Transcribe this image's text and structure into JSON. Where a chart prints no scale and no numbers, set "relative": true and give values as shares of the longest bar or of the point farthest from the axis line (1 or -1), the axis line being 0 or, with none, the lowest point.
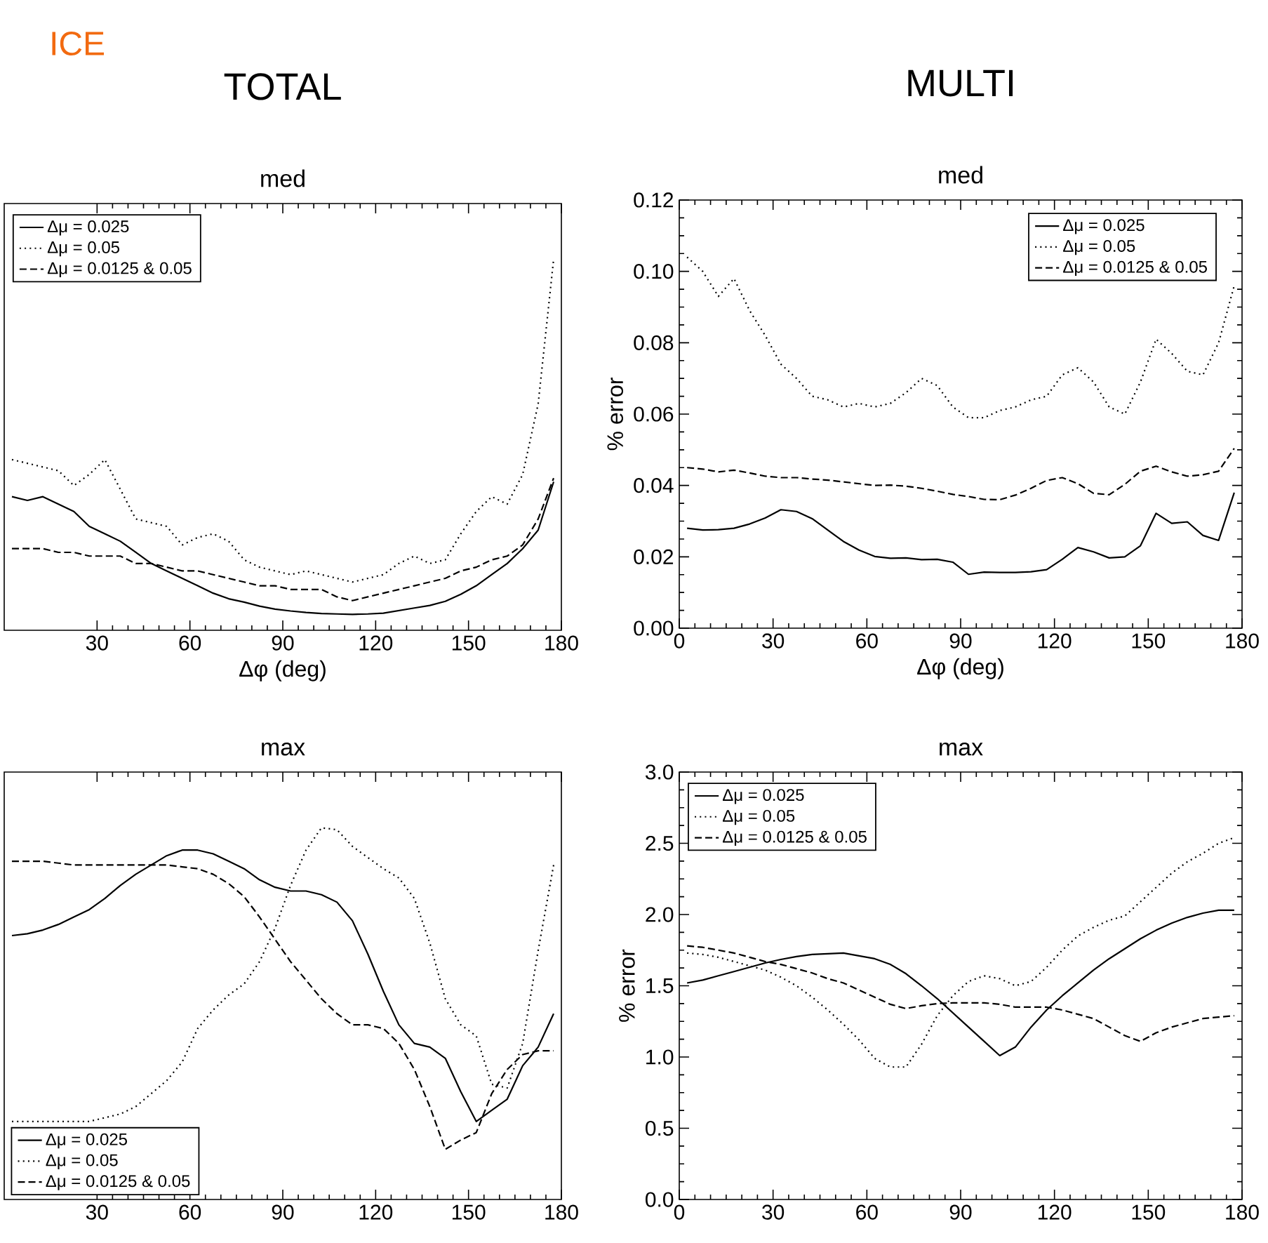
{
  "chart_data": [
    {
      "type": "line",
      "title": "TOTAL",
      "subtitle": "med",
      "xlabel": "Δφ (deg)",
      "annotations": [
        "ICE"
      ],
      "relative": true,
      "xlim": [
        0,
        180
      ],
      "xticks": [
        30,
        60,
        90,
        120,
        150,
        180
      ],
      "legend": "top left",
      "x": [
        2.5,
        7.5,
        12.5,
        17.5,
        22.5,
        27.5,
        32.5,
        37.5,
        42.5,
        47.5,
        52.5,
        57.5,
        62.5,
        67.5,
        72.5,
        77.5,
        82.5,
        87.5,
        92.5,
        97.5,
        102.5,
        107.5,
        112.5,
        117.5,
        122.5,
        127.5,
        132.5,
        137.5,
        142.5,
        147.5,
        152.5,
        157.5,
        162.5,
        167.5,
        172.5,
        177.5
      ],
      "series": [
        {
          "name": "Δμ = 0.025",
          "color": "#000000",
          "line_style": "solid",
          "values": [
            0.36,
            0.35,
            0.36,
            0.34,
            0.32,
            0.28,
            0.26,
            0.24,
            0.21,
            0.18,
            0.16,
            0.14,
            0.12,
            0.1,
            0.085,
            0.076,
            0.065,
            0.057,
            0.052,
            0.048,
            0.045,
            0.044,
            0.043,
            0.044,
            0.046,
            0.053,
            0.06,
            0.067,
            0.078,
            0.097,
            0.12,
            0.15,
            0.18,
            0.22,
            0.27,
            0.4
          ]
        },
        {
          "name": "Δμ =  0.05",
          "color": "#000000",
          "line_style": "dotted",
          "values": [
            0.46,
            0.45,
            0.44,
            0.43,
            0.39,
            0.42,
            0.46,
            0.38,
            0.3,
            0.29,
            0.28,
            0.23,
            0.25,
            0.26,
            0.24,
            0.19,
            0.17,
            0.16,
            0.15,
            0.16,
            0.15,
            0.14,
            0.13,
            0.14,
            0.15,
            0.18,
            0.2,
            0.18,
            0.19,
            0.26,
            0.32,
            0.36,
            0.34,
            0.42,
            0.61,
            1.0
          ]
        },
        {
          "name": "Δμ = 0.0125 & 0.05",
          "color": "#000000",
          "line_style": "dashed",
          "values": [
            0.22,
            0.22,
            0.22,
            0.21,
            0.21,
            0.2,
            0.2,
            0.2,
            0.18,
            0.18,
            0.17,
            0.16,
            0.16,
            0.15,
            0.14,
            0.13,
            0.12,
            0.12,
            0.11,
            0.11,
            0.11,
            0.09,
            0.08,
            0.09,
            0.1,
            0.11,
            0.12,
            0.13,
            0.14,
            0.16,
            0.17,
            0.19,
            0.2,
            0.23,
            0.3,
            0.41
          ]
        }
      ]
    },
    {
      "type": "line",
      "title": "MULTI",
      "subtitle": "med",
      "xlabel": "Δφ (deg)",
      "ylabel": "% error",
      "xlim": [
        0,
        180
      ],
      "xticks": [
        0,
        30,
        60,
        90,
        120,
        150,
        180
      ],
      "ylim": [
        0,
        0.12
      ],
      "yticks": [
        {
          "value": 0,
          "label": "0.00"
        },
        {
          "value": 0.02,
          "label": "0.02"
        },
        {
          "value": 0.04,
          "label": "0.04"
        },
        {
          "value": 0.06,
          "label": "0.06"
        },
        {
          "value": 0.08,
          "label": "0.08"
        },
        {
          "value": 0.1,
          "label": "0.10"
        },
        {
          "value": 0.12,
          "label": "0.12"
        }
      ],
      "legend": "top right",
      "x": [
        2.5,
        7.5,
        12.5,
        17.5,
        22.5,
        27.5,
        32.5,
        37.5,
        42.5,
        47.5,
        52.5,
        57.5,
        62.5,
        67.5,
        72.5,
        77.5,
        82.5,
        87.5,
        92.5,
        97.5,
        102.5,
        107.5,
        112.5,
        117.5,
        122.5,
        127.5,
        132.5,
        137.5,
        142.5,
        147.5,
        152.5,
        157.5,
        162.5,
        167.5,
        172.5,
        177.5
      ],
      "series": [
        {
          "name": "Δμ = 0.025",
          "color": "#000000",
          "line_style": "solid",
          "values": [
            0.028,
            0.0275,
            0.0276,
            0.028,
            0.0292,
            0.0309,
            0.0332,
            0.0327,
            0.0307,
            0.0275,
            0.0243,
            0.0219,
            0.0201,
            0.0196,
            0.0197,
            0.0192,
            0.0193,
            0.0185,
            0.0151,
            0.0157,
            0.0156,
            0.0156,
            0.0158,
            0.0164,
            0.0193,
            0.0226,
            0.0214,
            0.0197,
            0.02,
            0.0231,
            0.0322,
            0.0294,
            0.0298,
            0.026,
            0.0246,
            0.038
          ]
        },
        {
          "name": "Δμ =  0.05",
          "color": "#000000",
          "line_style": "dotted",
          "values": [
            0.104,
            0.1,
            0.093,
            0.098,
            0.089,
            0.082,
            0.074,
            0.07,
            0.065,
            0.064,
            0.062,
            0.063,
            0.062,
            0.063,
            0.066,
            0.07,
            0.068,
            0.062,
            0.059,
            0.059,
            0.061,
            0.062,
            0.064,
            0.065,
            0.071,
            0.073,
            0.069,
            0.062,
            0.06,
            0.069,
            0.081,
            0.077,
            0.072,
            0.071,
            0.08,
            0.096
          ]
        },
        {
          "name": "Δμ = 0.0125 & 0.05",
          "color": "#000000",
          "line_style": "dashed",
          "values": [
            0.045,
            0.0446,
            0.0438,
            0.0443,
            0.0435,
            0.0426,
            0.0422,
            0.0422,
            0.0418,
            0.0415,
            0.041,
            0.0405,
            0.04,
            0.0401,
            0.0398,
            0.0392,
            0.0384,
            0.0375,
            0.0369,
            0.0361,
            0.036,
            0.0373,
            0.0392,
            0.0414,
            0.0422,
            0.0405,
            0.0378,
            0.0374,
            0.0403,
            0.044,
            0.0454,
            0.0438,
            0.0426,
            0.043,
            0.044,
            0.0504
          ]
        }
      ]
    },
    {
      "type": "line",
      "title": "max",
      "relative": true,
      "xlim": [
        0,
        180
      ],
      "xticks": [
        30,
        60,
        90,
        120,
        150,
        180
      ],
      "legend": "bottom left",
      "x": [
        2.5,
        7.5,
        12.5,
        17.5,
        22.5,
        27.5,
        32.5,
        37.5,
        42.5,
        47.5,
        52.5,
        57.5,
        62.5,
        67.5,
        72.5,
        77.5,
        82.5,
        87.5,
        92.5,
        97.5,
        102.5,
        107.5,
        112.5,
        117.5,
        122.5,
        127.5,
        132.5,
        137.5,
        142.5,
        147.5,
        152.5,
        157.5,
        162.5,
        167.5,
        172.5,
        177.5
      ],
      "series": [
        {
          "name": "Δμ = 0.025",
          "color": "#000000",
          "line_style": "solid",
          "values": [
            0.71,
            0.715,
            0.725,
            0.74,
            0.76,
            0.78,
            0.81,
            0.845,
            0.875,
            0.9,
            0.925,
            0.94,
            0.94,
            0.93,
            0.91,
            0.89,
            0.86,
            0.84,
            0.83,
            0.83,
            0.82,
            0.8,
            0.75,
            0.66,
            0.56,
            0.47,
            0.42,
            0.41,
            0.38,
            0.29,
            0.21,
            0.24,
            0.27,
            0.36,
            0.41,
            0.5
          ]
        },
        {
          "name": "Δμ =  0.05",
          "color": "#000000",
          "line_style": "dotted",
          "values": [
            0.21,
            0.21,
            0.21,
            0.21,
            0.21,
            0.21,
            0.22,
            0.23,
            0.25,
            0.285,
            0.32,
            0.37,
            0.46,
            0.51,
            0.55,
            0.58,
            0.64,
            0.73,
            0.845,
            0.94,
            1.0,
            0.995,
            0.95,
            0.92,
            0.89,
            0.865,
            0.81,
            0.69,
            0.54,
            0.47,
            0.44,
            0.31,
            0.3,
            0.42,
            0.67,
            0.9
          ]
        },
        {
          "name": "Δμ = 0.0125 & 0.05",
          "color": "#000000",
          "line_style": "dashed",
          "values": [
            0.91,
            0.91,
            0.91,
            0.905,
            0.9,
            0.9,
            0.9,
            0.9,
            0.9,
            0.9,
            0.9,
            0.895,
            0.89,
            0.875,
            0.85,
            0.815,
            0.76,
            0.7,
            0.64,
            0.59,
            0.54,
            0.5,
            0.47,
            0.47,
            0.46,
            0.42,
            0.35,
            0.25,
            0.135,
            0.16,
            0.18,
            0.285,
            0.35,
            0.39,
            0.4,
            0.4
          ]
        }
      ]
    },
    {
      "type": "line",
      "title": "max",
      "ylabel": "% error",
      "xlim": [
        0,
        180
      ],
      "xticks": [
        0,
        30,
        60,
        90,
        120,
        150,
        180
      ],
      "ylim": [
        0,
        3
      ],
      "yticks": [
        {
          "value": 0,
          "label": "0.0"
        },
        {
          "value": 0.5,
          "label": "0.5"
        },
        {
          "value": 1,
          "label": "1.0"
        },
        {
          "value": 1.5,
          "label": "1.5"
        },
        {
          "value": 2,
          "label": "2.0"
        },
        {
          "value": 2.5,
          "label": "2.5"
        },
        {
          "value": 3,
          "label": "3.0"
        }
      ],
      "legend": "top left",
      "x": [
        2.5,
        7.5,
        12.5,
        17.5,
        22.5,
        27.5,
        32.5,
        37.5,
        42.5,
        47.5,
        52.5,
        57.5,
        62.5,
        67.5,
        72.5,
        77.5,
        82.5,
        87.5,
        92.5,
        97.5,
        102.5,
        107.5,
        112.5,
        117.5,
        122.5,
        127.5,
        132.5,
        137.5,
        142.5,
        147.5,
        152.5,
        157.5,
        162.5,
        167.5,
        172.5,
        177.5
      ],
      "series": [
        {
          "name": "Δμ = 0.025",
          "color": "#000000",
          "line_style": "solid",
          "values": [
            1.52,
            1.54,
            1.57,
            1.6,
            1.63,
            1.66,
            1.685,
            1.705,
            1.72,
            1.725,
            1.73,
            1.71,
            1.69,
            1.65,
            1.585,
            1.5,
            1.41,
            1.31,
            1.21,
            1.11,
            1.01,
            1.07,
            1.21,
            1.33,
            1.43,
            1.52,
            1.61,
            1.69,
            1.76,
            1.83,
            1.89,
            1.94,
            1.98,
            2.01,
            2.03,
            2.03
          ]
        },
        {
          "name": "Δμ =  0.05",
          "color": "#000000",
          "line_style": "dotted",
          "values": [
            1.73,
            1.72,
            1.7,
            1.67,
            1.64,
            1.61,
            1.56,
            1.5,
            1.42,
            1.33,
            1.23,
            1.12,
            0.99,
            0.93,
            0.93,
            1.09,
            1.29,
            1.43,
            1.53,
            1.57,
            1.55,
            1.5,
            1.53,
            1.63,
            1.75,
            1.85,
            1.91,
            1.96,
            1.99,
            2.09,
            2.19,
            2.29,
            2.37,
            2.43,
            2.5,
            2.54
          ]
        },
        {
          "name": "Δμ = 0.0125 & 0.05",
          "color": "#000000",
          "line_style": "dashed",
          "values": [
            1.78,
            1.77,
            1.75,
            1.73,
            1.7,
            1.67,
            1.65,
            1.62,
            1.59,
            1.55,
            1.52,
            1.47,
            1.42,
            1.37,
            1.34,
            1.36,
            1.375,
            1.38,
            1.38,
            1.38,
            1.37,
            1.35,
            1.35,
            1.35,
            1.33,
            1.3,
            1.27,
            1.21,
            1.15,
            1.11,
            1.17,
            1.21,
            1.24,
            1.27,
            1.28,
            1.29
          ]
        }
      ]
    }
  ]
}
